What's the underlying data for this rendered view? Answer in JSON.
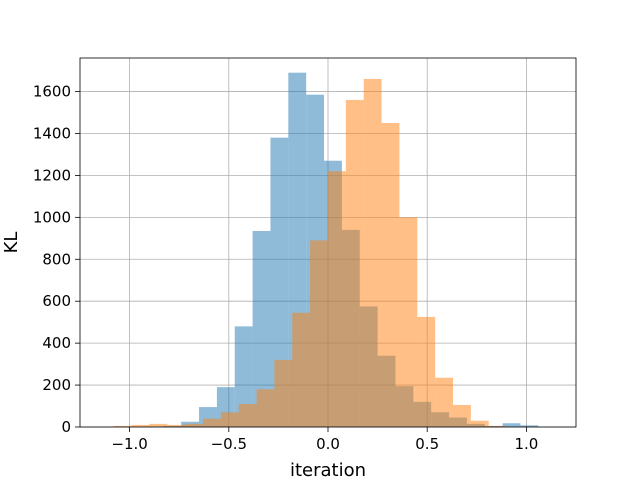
{
  "chart_data": {
    "type": "bar",
    "xlabel": "iteration",
    "ylabel": "KL",
    "xlim": [
      -1.25,
      1.25
    ],
    "ylim": [
      0,
      1760
    ],
    "grid": true,
    "x_ticks": [
      -1.0,
      -0.5,
      0.0,
      0.5,
      1.0
    ],
    "x_tick_labels": [
      "−1.0",
      "−0.5",
      "0.0",
      "0.5",
      "1.0"
    ],
    "y_ticks": [
      0,
      200,
      400,
      600,
      800,
      1000,
      1200,
      1400,
      1600
    ],
    "y_tick_labels": [
      "0",
      "200",
      "400",
      "600",
      "800",
      "1000",
      "1200",
      "1400",
      "1600"
    ],
    "series": [
      {
        "color": "#1f77b4",
        "alpha": 0.5,
        "bins": [
          [
            -0.92,
            -0.83,
            2
          ],
          [
            -0.83,
            -0.74,
            5
          ],
          [
            -0.74,
            -0.65,
            25
          ],
          [
            -0.65,
            -0.56,
            95
          ],
          [
            -0.56,
            -0.47,
            190
          ],
          [
            -0.47,
            -0.38,
            480
          ],
          [
            -0.38,
            -0.29,
            935
          ],
          [
            -0.29,
            -0.2,
            1380
          ],
          [
            -0.2,
            -0.11,
            1690
          ],
          [
            -0.11,
            -0.02,
            1585
          ],
          [
            -0.02,
            0.07,
            1270
          ],
          [
            0.07,
            0.16,
            940
          ],
          [
            0.16,
            0.25,
            575
          ],
          [
            0.25,
            0.34,
            340
          ],
          [
            0.34,
            0.43,
            195
          ],
          [
            0.43,
            0.52,
            120
          ],
          [
            0.52,
            0.61,
            70
          ],
          [
            0.61,
            0.7,
            45
          ],
          [
            0.7,
            0.79,
            15
          ],
          [
            0.79,
            0.88,
            5
          ],
          [
            0.88,
            0.97,
            18
          ],
          [
            0.97,
            1.06,
            8
          ]
        ]
      },
      {
        "color": "#ff7f0e",
        "alpha": 0.5,
        "bins": [
          [
            -1.08,
            -0.99,
            5
          ],
          [
            -0.99,
            -0.9,
            10
          ],
          [
            -0.9,
            -0.81,
            15
          ],
          [
            -0.81,
            -0.72,
            10
          ],
          [
            -0.72,
            -0.63,
            15
          ],
          [
            -0.63,
            -0.54,
            40
          ],
          [
            -0.54,
            -0.45,
            70
          ],
          [
            -0.45,
            -0.36,
            110
          ],
          [
            -0.36,
            -0.27,
            180
          ],
          [
            -0.27,
            -0.18,
            320
          ],
          [
            -0.18,
            -0.09,
            545
          ],
          [
            -0.09,
            0.0,
            890
          ],
          [
            0.0,
            0.09,
            1220
          ],
          [
            0.09,
            0.18,
            1560
          ],
          [
            0.18,
            0.27,
            1660
          ],
          [
            0.27,
            0.36,
            1450
          ],
          [
            0.36,
            0.45,
            1000
          ],
          [
            0.45,
            0.54,
            525
          ],
          [
            0.54,
            0.63,
            235
          ],
          [
            0.63,
            0.72,
            105
          ],
          [
            0.72,
            0.81,
            30
          ],
          [
            0.81,
            0.9,
            5
          ]
        ]
      }
    ]
  }
}
